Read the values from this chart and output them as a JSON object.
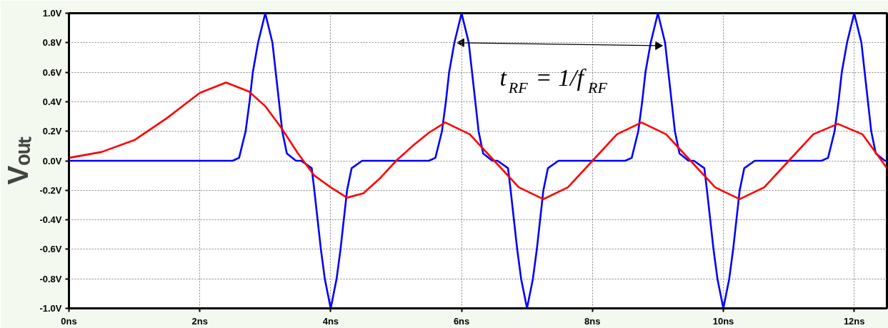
{
  "chart_data": {
    "type": "line",
    "ylabel": "Vₒᵤₜ",
    "xlim": [
      0,
      12.5
    ],
    "ylim": [
      -1.0,
      1.0
    ],
    "xticks": [
      {
        "value": 0,
        "label": "0ns"
      },
      {
        "value": 2,
        "label": "2ns"
      },
      {
        "value": 4,
        "label": "4ns"
      },
      {
        "value": 6,
        "label": "6ns"
      },
      {
        "value": 8,
        "label": "8ns"
      },
      {
        "value": 10,
        "label": "10ns"
      },
      {
        "value": 12,
        "label": "12ns"
      }
    ],
    "yticks": [
      {
        "value": -1.0,
        "label": "-1.0V"
      },
      {
        "value": -0.8,
        "label": "-0.8V"
      },
      {
        "value": -0.6,
        "label": "-0.6V"
      },
      {
        "value": -0.4,
        "label": "-0.4V"
      },
      {
        "value": -0.2,
        "label": "-0.2V"
      },
      {
        "value": 0.0,
        "label": "0.0V"
      },
      {
        "value": 0.2,
        "label": "0.2V"
      },
      {
        "value": 0.4,
        "label": "0.4V"
      },
      {
        "value": 0.6,
        "label": "0.6V"
      },
      {
        "value": 0.8,
        "label": "0.8V"
      },
      {
        "value": 1.0,
        "label": "1.0V"
      }
    ],
    "grid": true,
    "marker": "none",
    "line_style": "solid",
    "annotations": [
      "t$_{RF}$ = 1/f$_{RF}$"
    ],
    "series": [
      {
        "color": "#0000ff",
        "x": [
          0,
          2.5,
          2.6,
          2.7,
          2.76,
          2.81,
          2.89,
          3,
          3.11,
          3.16,
          3.21,
          3.26,
          3.33,
          3.47,
          3.55,
          3.71,
          3.75,
          3.8,
          3.85,
          3.91,
          4,
          4.09,
          4.15,
          4.2,
          4.25,
          4.32,
          4.48,
          5.5,
          5.6,
          5.7,
          5.76,
          5.81,
          5.89,
          6,
          6.11,
          6.16,
          6.21,
          6.26,
          6.33,
          6.47,
          6.55,
          6.71,
          6.75,
          6.8,
          6.85,
          6.91,
          7,
          7.09,
          7.15,
          7.2,
          7.25,
          7.32,
          7.48,
          8.5,
          8.6,
          8.7,
          8.76,
          8.81,
          8.89,
          9,
          9.11,
          9.16,
          9.21,
          9.26,
          9.33,
          9.47,
          9.55,
          9.71,
          9.75,
          9.8,
          9.85,
          9.91,
          10,
          10.09,
          10.15,
          10.2,
          10.25,
          10.32,
          10.48,
          11.5,
          11.6,
          11.7,
          11.76,
          11.81,
          11.89,
          12,
          12.11,
          12.16,
          12.21,
          12.26,
          12.33,
          12.47,
          12.5
        ],
        "values": [
          0,
          0,
          0.02,
          0.2,
          0.4,
          0.6,
          0.8,
          1,
          0.8,
          0.6,
          0.4,
          0.2,
          0.05,
          0,
          0,
          -0.05,
          -0.2,
          -0.4,
          -0.6,
          -0.8,
          -1,
          -0.8,
          -0.6,
          -0.4,
          -0.2,
          -0.05,
          0,
          0,
          0.02,
          0.2,
          0.4,
          0.6,
          0.8,
          1,
          0.8,
          0.6,
          0.4,
          0.2,
          0.05,
          0,
          0,
          -0.05,
          -0.2,
          -0.4,
          -0.6,
          -0.8,
          -1,
          -0.8,
          -0.6,
          -0.4,
          -0.2,
          -0.05,
          0,
          0,
          0.02,
          0.2,
          0.4,
          0.6,
          0.8,
          1,
          0.8,
          0.6,
          0.4,
          0.2,
          0.05,
          0,
          0,
          -0.05,
          -0.2,
          -0.4,
          -0.6,
          -0.8,
          -1,
          -0.8,
          -0.6,
          -0.4,
          -0.2,
          -0.05,
          0,
          0,
          0.02,
          0.2,
          0.4,
          0.6,
          0.8,
          1,
          0.8,
          0.6,
          0.4,
          0.2,
          0.05,
          0,
          0
        ]
      },
      {
        "type": "line",
        "color": "#000000",
        "marker": "triangle",
        "x": [
          6,
          9
        ],
        "values": [
          0.8,
          0.78
        ]
      },
      {
        "color": "#ff0000",
        "x": [
          0,
          0.5,
          1,
          1.5,
          2,
          2.4,
          2.75,
          3,
          3.25,
          3.5,
          3.75,
          4,
          4.25,
          4.5,
          4.75,
          5,
          5.25,
          5.5,
          5.75,
          6.125,
          6.5,
          6.875,
          7.25,
          7.625,
          8,
          8.375,
          8.75,
          9.125,
          9.5,
          9.875,
          10.25,
          10.625,
          11,
          11.375,
          11.75,
          12.125,
          12.5
        ],
        "values": [
          0.02,
          0.06,
          0.14,
          0.29,
          0.46,
          0.53,
          0.47,
          0.37,
          0.22,
          0.05,
          -0.1,
          -0.18,
          -0.25,
          -0.22,
          -0.12,
          0,
          0.1,
          0.19,
          0.26,
          0.18,
          0,
          -0.18,
          -0.26,
          -0.18,
          0,
          0.18,
          0.26,
          0.18,
          0,
          -0.18,
          -0.26,
          -0.18,
          0,
          0.18,
          0.25,
          0.18,
          -0.05
        ]
      }
    ]
  }
}
